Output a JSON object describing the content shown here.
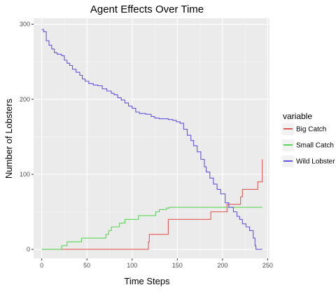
{
  "chart_data": {
    "type": "line",
    "title": "Agent Effects Over Time",
    "xlabel": "Time Steps",
    "ylabel": "Number of Lobsters",
    "xlim": [
      -9,
      252
    ],
    "ylim": [
      -12,
      308
    ],
    "x_ticks": [
      0,
      50,
      100,
      150,
      200,
      250
    ],
    "y_ticks": [
      0,
      100,
      200,
      300
    ],
    "grid": true,
    "legend_title": "variable",
    "legend_position": "right",
    "series": [
      {
        "name": "Big Catch",
        "color": "#e05a55",
        "points": [
          [
            0,
            0
          ],
          [
            117,
            0
          ],
          [
            118,
            10
          ],
          [
            119,
            20
          ],
          [
            139,
            20
          ],
          [
            140,
            40
          ],
          [
            186,
            40
          ],
          [
            187,
            50
          ],
          [
            204,
            50
          ],
          [
            205,
            60
          ],
          [
            219,
            60
          ],
          [
            220,
            70
          ],
          [
            222,
            80
          ],
          [
            238,
            80
          ],
          [
            239,
            90
          ],
          [
            243,
            90
          ],
          [
            244,
            120
          ]
        ]
      },
      {
        "name": "Small Catch",
        "color": "#5bd75b",
        "points": [
          [
            0,
            0
          ],
          [
            21,
            0
          ],
          [
            22,
            5
          ],
          [
            27,
            5
          ],
          [
            28,
            10
          ],
          [
            43,
            10
          ],
          [
            44,
            15
          ],
          [
            70,
            15
          ],
          [
            71,
            20
          ],
          [
            74,
            25
          ],
          [
            77,
            30
          ],
          [
            85,
            30
          ],
          [
            86,
            35
          ],
          [
            91,
            35
          ],
          [
            92,
            40
          ],
          [
            106,
            40
          ],
          [
            107,
            45
          ],
          [
            125,
            45
          ],
          [
            126,
            50
          ],
          [
            130,
            53
          ],
          [
            138,
            55
          ],
          [
            141,
            56
          ],
          [
            244,
            56
          ]
        ]
      },
      {
        "name": "Wild Lobster",
        "color": "#6456dd",
        "points": [
          [
            0,
            293
          ],
          [
            2,
            290
          ],
          [
            5,
            278
          ],
          [
            8,
            272
          ],
          [
            11,
            267
          ],
          [
            14,
            262
          ],
          [
            17,
            260
          ],
          [
            22,
            258
          ],
          [
            25,
            252
          ],
          [
            28,
            248
          ],
          [
            31,
            245
          ],
          [
            34,
            240
          ],
          [
            38,
            236
          ],
          [
            42,
            232
          ],
          [
            45,
            227
          ],
          [
            48,
            224
          ],
          [
            52,
            221
          ],
          [
            57,
            219
          ],
          [
            62,
            218
          ],
          [
            67,
            214
          ],
          [
            72,
            211
          ],
          [
            77,
            208
          ],
          [
            80,
            206
          ],
          [
            84,
            202
          ],
          [
            88,
            199
          ],
          [
            92,
            195
          ],
          [
            96,
            191
          ],
          [
            100,
            188
          ],
          [
            104,
            183
          ],
          [
            108,
            181
          ],
          [
            115,
            180
          ],
          [
            121,
            177
          ],
          [
            125,
            175
          ],
          [
            130,
            174
          ],
          [
            140,
            173
          ],
          [
            145,
            172
          ],
          [
            149,
            170
          ],
          [
            153,
            168
          ],
          [
            157,
            160
          ],
          [
            161,
            152
          ],
          [
            165,
            145
          ],
          [
            168,
            138
          ],
          [
            172,
            130
          ],
          [
            176,
            120
          ],
          [
            180,
            110
          ],
          [
            182,
            103
          ],
          [
            186,
            95
          ],
          [
            190,
            87
          ],
          [
            194,
            80
          ],
          [
            198,
            74
          ],
          [
            203,
            62
          ],
          [
            207,
            56
          ],
          [
            212,
            50
          ],
          [
            216,
            44
          ],
          [
            219,
            40
          ],
          [
            222,
            34
          ],
          [
            226,
            30
          ],
          [
            230,
            25
          ],
          [
            234,
            15
          ],
          [
            236,
            5
          ],
          [
            237,
            0
          ],
          [
            244,
            0
          ]
        ]
      }
    ]
  }
}
